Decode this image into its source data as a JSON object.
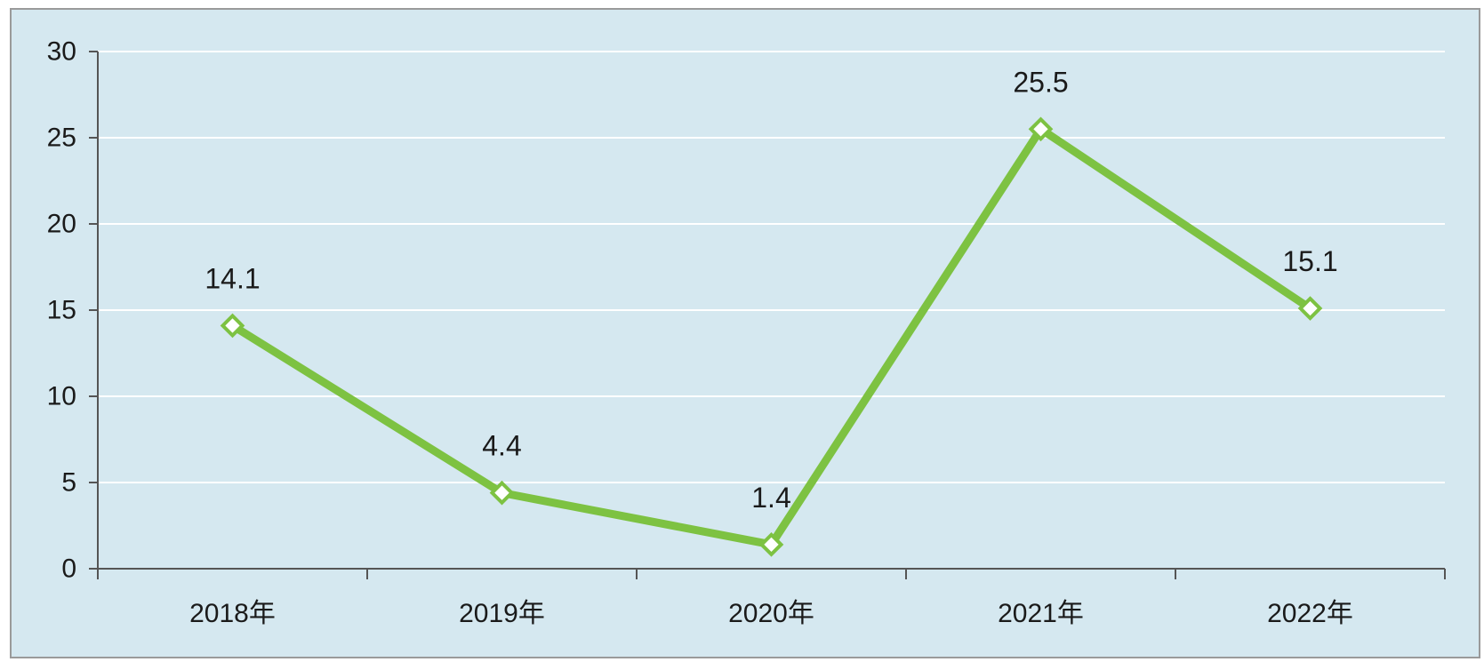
{
  "chart_data": {
    "type": "line",
    "title": "",
    "xlabel": "",
    "ylabel": "",
    "categories": [
      "2018年",
      "2019年",
      "2020年",
      "2021年",
      "2022年"
    ],
    "series": [
      {
        "values": [
          14.1,
          4.4,
          1.4,
          25.5,
          15.1
        ],
        "data_labels": [
          "14.1",
          "4.4",
          "1.4",
          "25.5",
          "15.1"
        ]
      }
    ],
    "ylim": [
      0,
      30
    ],
    "yticks": [
      0,
      5,
      10,
      15,
      20,
      25,
      30
    ],
    "ytick_labels": [
      "0",
      "5",
      "10",
      "15",
      "20",
      "25",
      "30"
    ],
    "grid": true,
    "legend": "none",
    "colors": {
      "background": "#d5e8f0",
      "border": "#9a9a9a",
      "gridline": "#ffffff",
      "axis": "#555555",
      "line": "#7dc242",
      "marker_fill": "#ffffff",
      "marker_stroke": "#7dc242",
      "text": "#1a1a1a"
    }
  }
}
